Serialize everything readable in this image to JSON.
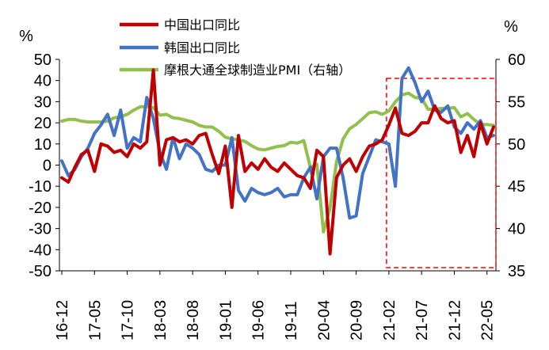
{
  "chart_data": {
    "type": "line",
    "left_axis": {
      "unit": "%",
      "ylim": [
        -50,
        50
      ],
      "ticks": [
        50,
        40,
        30,
        20,
        10,
        0,
        -10,
        -20,
        -30,
        -40,
        -50
      ]
    },
    "right_axis": {
      "unit": "%",
      "ylim": [
        35,
        60
      ],
      "ticks": [
        60,
        55,
        50,
        45,
        40,
        35
      ]
    },
    "x_tick_labels": [
      "16-12",
      "17-05",
      "17-10",
      "18-03",
      "18-08",
      "19-01",
      "19-06",
      "19-11",
      "20-04",
      "20-09",
      "21-02",
      "21-07",
      "21-12",
      "22-05"
    ],
    "months": [
      "16-12",
      "17-01",
      "17-02",
      "17-03",
      "17-04",
      "17-05",
      "17-06",
      "17-07",
      "17-08",
      "17-09",
      "17-10",
      "17-11",
      "17-12",
      "18-01",
      "18-02",
      "18-03",
      "18-04",
      "18-05",
      "18-06",
      "18-07",
      "18-08",
      "18-09",
      "18-10",
      "18-11",
      "18-12",
      "19-01",
      "19-02",
      "19-03",
      "19-04",
      "19-05",
      "19-06",
      "19-07",
      "19-08",
      "19-09",
      "19-10",
      "19-11",
      "19-12",
      "20-01",
      "20-02",
      "20-03",
      "20-04",
      "20-05",
      "20-06",
      "20-07",
      "20-08",
      "20-09",
      "20-10",
      "20-11",
      "20-12",
      "21-01",
      "21-02",
      "21-03",
      "21-04",
      "21-05",
      "21-06",
      "21-07",
      "21-08",
      "21-09",
      "21-10",
      "21-11",
      "21-12",
      "22-01",
      "22-02",
      "22-03",
      "22-04",
      "22-05",
      "22-06"
    ],
    "series": [
      {
        "name": "中国出口同比",
        "axis": "left",
        "color": "#c00000",
        "values": [
          -6,
          -8,
          -1,
          5,
          7,
          -3,
          10,
          9,
          6,
          7,
          4,
          10,
          8,
          11,
          45,
          0,
          12,
          13,
          11,
          12,
          10,
          14,
          15,
          5,
          -4,
          9,
          -20,
          14,
          -3,
          1,
          -2,
          3,
          -1,
          -3,
          1,
          -2,
          -5,
          -6,
          -11,
          7,
          4,
          -42,
          -6,
          0,
          3,
          -3,
          4,
          9,
          10,
          12,
          19,
          27,
          15,
          14,
          16,
          20,
          20,
          28,
          22,
          20,
          21,
          6,
          14,
          4,
          20,
          10,
          18
        ],
        "values_note_free": true
      },
      {
        "name": "韩国出口同比",
        "axis": "left",
        "color": "#4472c4",
        "values": [
          2,
          -5,
          -2,
          4,
          8,
          15,
          19,
          24,
          14,
          26,
          8,
          13,
          11,
          32,
          22,
          6,
          -2,
          13,
          3,
          10,
          8,
          5,
          -2,
          -3,
          0,
          0,
          13,
          -12,
          -17,
          -11,
          -13,
          -14,
          -13,
          -11,
          -15,
          -14,
          -14,
          -6,
          -1,
          -16,
          4,
          8,
          8,
          -6,
          -25,
          -24,
          -4,
          4,
          12,
          11,
          10,
          -10,
          41,
          46,
          39,
          30,
          35,
          26,
          25,
          28,
          18,
          15,
          20,
          17,
          21,
          13,
          14
        ],
        "values_note_free": true
      },
      {
        "name": "摩根大通全球制造业PMI（右轴）",
        "axis": "right",
        "color": "#92c04c",
        "values": [
          52.7,
          52.9,
          52.9,
          52.7,
          52.6,
          52.6,
          52.6,
          52.7,
          53.1,
          53.2,
          53.5,
          54.0,
          54.4,
          54.4,
          54.3,
          53.4,
          53.5,
          53.1,
          53.0,
          52.8,
          52.6,
          52.2,
          52.0,
          52.0,
          51.5,
          50.8,
          50.6,
          50.5,
          50.3,
          49.8,
          49.4,
          49.3,
          49.5,
          49.7,
          49.8,
          50.2,
          50.1,
          50.4,
          47.2,
          47.6,
          39.6,
          42.4,
          47.9,
          50.6,
          51.8,
          52.3,
          53.0,
          53.7,
          53.8,
          53.5,
          53.9,
          55.0,
          55.8,
          56.0,
          55.5,
          55.4,
          54.1,
          54.1,
          54.2,
          54.2,
          54.3,
          53.2,
          53.6,
          52.9,
          52.3,
          52.3,
          52.2
        ]
      }
    ],
    "legend": [
      "中国出口同比",
      "韩国出口同比",
      "摩根大通全球制造业PMI（右轴）"
    ],
    "legend_placement": "top",
    "highlight_box": {
      "from": "21-02",
      "to": "22-06",
      "color": "#ff0000",
      "style": "dashed"
    },
    "grid": false
  }
}
